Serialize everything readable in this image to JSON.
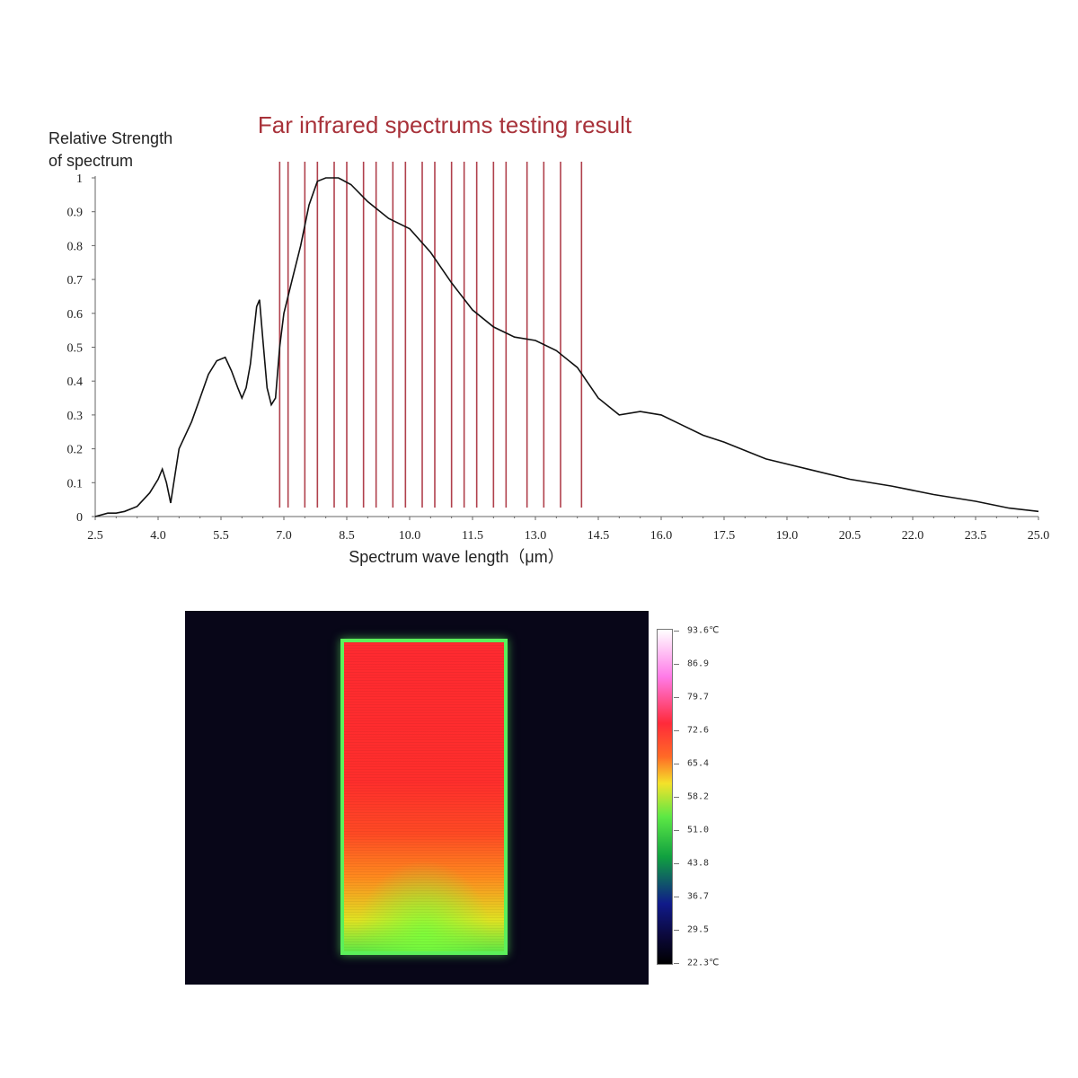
{
  "chart_data": {
    "type": "line",
    "title": "Far infrared spectrums testing result",
    "ylabel_lines": [
      "Relative Strength",
      "of spectrum"
    ],
    "xlabel": "Spectrum wave length（μm）",
    "xlim": [
      2.5,
      25.0
    ],
    "ylim": [
      0,
      1
    ],
    "x_ticks": [
      "2.5",
      "4.0",
      "5.5",
      "7.0",
      "8.5",
      "10.0",
      "11.5",
      "13.0",
      "14.5",
      "16.0",
      "17.5",
      "19.0",
      "20.5",
      "22.0",
      "23.5",
      "25.0"
    ],
    "y_ticks": [
      "0",
      "0.1",
      "0.2",
      "0.3",
      "0.4",
      "0.5",
      "0.6",
      "0.7",
      "0.8",
      "0.9",
      "1"
    ],
    "band_lines_x": [
      6.9,
      7.1,
      7.5,
      7.8,
      8.2,
      8.5,
      8.9,
      9.2,
      9.6,
      9.9,
      10.3,
      10.6,
      11.0,
      11.3,
      11.6,
      12.0,
      12.3,
      12.8,
      13.2,
      13.6,
      14.1
    ],
    "series": [
      {
        "points": [
          [
            2.5,
            0.0
          ],
          [
            2.8,
            0.01
          ],
          [
            3.0,
            0.01
          ],
          [
            3.2,
            0.015
          ],
          [
            3.5,
            0.03
          ],
          [
            3.8,
            0.07
          ],
          [
            4.0,
            0.11
          ],
          [
            4.1,
            0.14
          ],
          [
            4.2,
            0.1
          ],
          [
            4.3,
            0.04
          ],
          [
            4.35,
            0.08
          ],
          [
            4.5,
            0.2
          ],
          [
            4.8,
            0.28
          ],
          [
            5.0,
            0.35
          ],
          [
            5.2,
            0.42
          ],
          [
            5.4,
            0.46
          ],
          [
            5.6,
            0.47
          ],
          [
            5.75,
            0.43
          ],
          [
            5.9,
            0.38
          ],
          [
            6.0,
            0.35
          ],
          [
            6.1,
            0.38
          ],
          [
            6.2,
            0.45
          ],
          [
            6.35,
            0.62
          ],
          [
            6.42,
            0.64
          ],
          [
            6.5,
            0.52
          ],
          [
            6.6,
            0.38
          ],
          [
            6.7,
            0.33
          ],
          [
            6.8,
            0.35
          ],
          [
            6.9,
            0.5
          ],
          [
            7.0,
            0.6
          ],
          [
            7.2,
            0.7
          ],
          [
            7.4,
            0.8
          ],
          [
            7.6,
            0.92
          ],
          [
            7.8,
            0.99
          ],
          [
            8.0,
            1.0
          ],
          [
            8.3,
            1.0
          ],
          [
            8.6,
            0.98
          ],
          [
            9.0,
            0.93
          ],
          [
            9.5,
            0.88
          ],
          [
            10.0,
            0.85
          ],
          [
            10.5,
            0.78
          ],
          [
            11.0,
            0.69
          ],
          [
            11.5,
            0.61
          ],
          [
            12.0,
            0.56
          ],
          [
            12.5,
            0.53
          ],
          [
            13.0,
            0.52
          ],
          [
            13.5,
            0.49
          ],
          [
            14.0,
            0.44
          ],
          [
            14.5,
            0.35
          ],
          [
            15.0,
            0.3
          ],
          [
            15.5,
            0.31
          ],
          [
            16.0,
            0.3
          ],
          [
            16.5,
            0.27
          ],
          [
            17.0,
            0.24
          ],
          [
            17.5,
            0.22
          ],
          [
            18.5,
            0.17
          ],
          [
            19.5,
            0.14
          ],
          [
            20.5,
            0.11
          ],
          [
            21.5,
            0.09
          ],
          [
            22.5,
            0.065
          ],
          [
            23.5,
            0.045
          ],
          [
            24.3,
            0.025
          ],
          [
            25.0,
            0.015
          ]
        ]
      }
    ]
  },
  "thermal_image": {
    "colorbar_labels": [
      "93.6℃",
      "86.9",
      "79.7",
      "72.6",
      "65.4",
      "58.2",
      "51.0",
      "43.8",
      "36.7",
      "29.5",
      "22.3℃"
    ],
    "colorbar_min": 22.3,
    "colorbar_max": 93.6
  }
}
